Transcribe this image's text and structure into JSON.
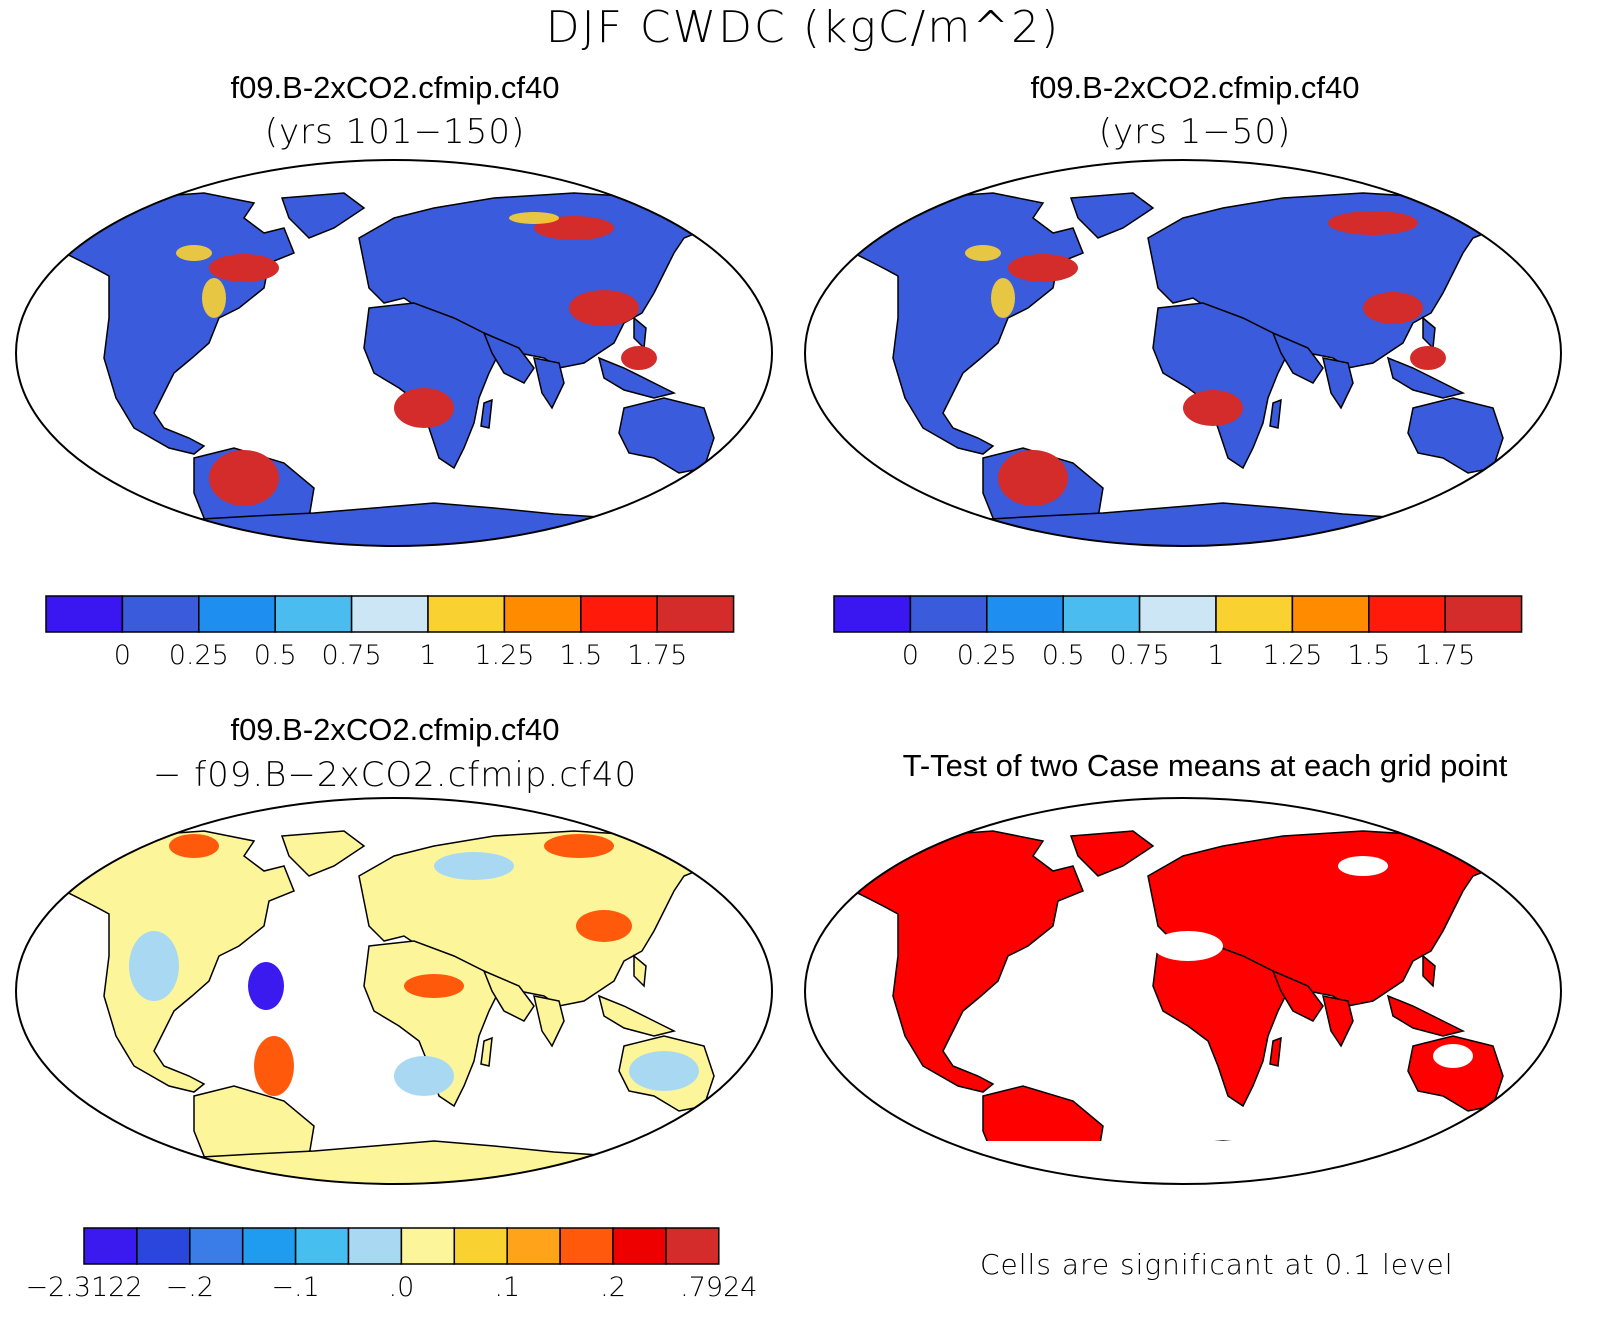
{
  "title": "DJF CWDC (kgC/m^2)",
  "panels": {
    "top_left": {
      "case": "f09.B-2xCO2.cfmip.cf40",
      "years": "(yrs 101−150)"
    },
    "top_right": {
      "case": "f09.B-2xCO2.cfmip.cf40",
      "years": "(yrs 1−50)"
    },
    "bottom_left": {
      "case": "f09.B-2xCO2.cfmip.cf40",
      "minus_case": "− f09.B−2xCO2.cfmip.cf40"
    },
    "bottom_right": {
      "title": "T-Test of two Case means at each grid point",
      "note": "Cells are significant at 0.1 level"
    }
  },
  "colorbar_main": {
    "labels": [
      "0",
      "0.25",
      "0.5",
      "0.75",
      "1",
      "1.25",
      "1.5",
      "1.75"
    ],
    "colors": [
      "#3a16f0",
      "#3a5bdc",
      "#1e8ff0",
      "#4bbcef",
      "#cce6f5",
      "#f9d232",
      "#ff8c00",
      "#ff1a0a",
      "#d42b2b"
    ]
  },
  "colorbar_diff": {
    "labels": [
      "−2.3122",
      "−.2",
      "−.1",
      ".0",
      ".1",
      ".2",
      ".7924"
    ],
    "colors": [
      "#3b1af0",
      "#2a46dc",
      "#3a7ce8",
      "#1f9cf0",
      "#46bff0",
      "#a9d9f2",
      "#fdf59a",
      "#f9d232",
      "#ffa41a",
      "#ff5a0c",
      "#ee0000",
      "#d42b2b"
    ]
  },
  "significance_color": "#ff0000",
  "land_color_main": "#3a5bdc",
  "land_color_diff": "#fdf59a"
}
